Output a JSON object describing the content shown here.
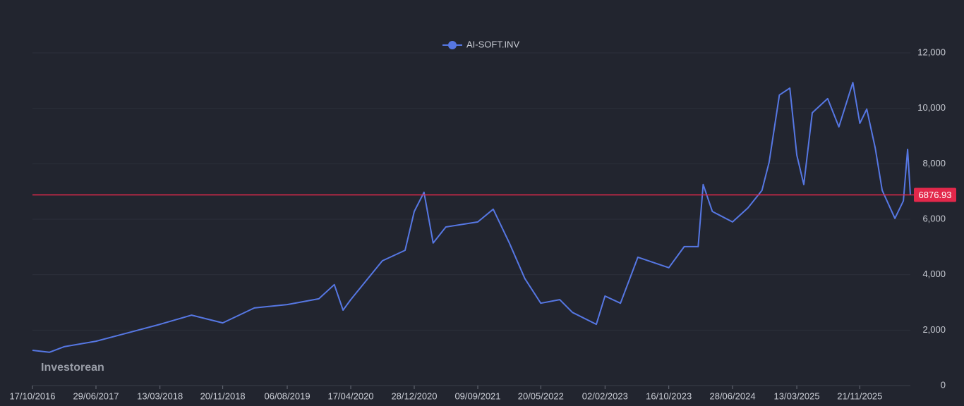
{
  "chart_data": {
    "type": "line",
    "watermark": "Investorean",
    "x": [
      "17/10/2016",
      "24/12/2016",
      "21/02/2017",
      "29/06/2017",
      "03/11/2017",
      "13/03/2018",
      "18/07/2018",
      "20/11/2018",
      "27/03/2019",
      "06/08/2019",
      "11/12/2019",
      "11/02/2020",
      "17/03/2020",
      "17/04/2020",
      "22/08/2020",
      "21/11/2020",
      "28/12/2020",
      "05/02/2021",
      "14/03/2021",
      "04/05/2021",
      "09/09/2021",
      "10/11/2021",
      "14/01/2022",
      "17/03/2022",
      "20/05/2022",
      "04/08/2022",
      "24/09/2022",
      "29/12/2022",
      "02/02/2023",
      "05/04/2023",
      "14/06/2023",
      "16/10/2023",
      "17/12/2023",
      "11/02/2024",
      "02/03/2024",
      "08/04/2024",
      "28/06/2024",
      "29/08/2024",
      "24/10/2024",
      "22/11/2024",
      "02/01/2025",
      "13/02/2025",
      "13/03/2025",
      "10/04/2025",
      "14/05/2025",
      "15/07/2025",
      "29/08/2025",
      "24/10/2025",
      "21/11/2025",
      "19/12/2025",
      "22/01/2026",
      "19/02/2026",
      "11/04/2026",
      "15/05/2026",
      "01/06/2026",
      "12/06/2026"
    ],
    "series": [
      {
        "name": "AI-SOFT.INV",
        "color": "#5677e3",
        "values": [
          1270,
          1200,
          1400,
          1600,
          1900,
          2210,
          2540,
          2260,
          2800,
          2920,
          3130,
          3640,
          2720,
          3100,
          4500,
          4880,
          6280,
          6970,
          5140,
          5720,
          5900,
          6360,
          5140,
          3860,
          2970,
          3100,
          2640,
          2210,
          3230,
          2970,
          4630,
          4250,
          5010,
          5010,
          7250,
          6280,
          5900,
          6410,
          7040,
          8060,
          10480,
          10730,
          8310,
          7250,
          9840,
          10350,
          9330,
          10930,
          9460,
          9970,
          8570,
          7040,
          6030,
          6660,
          8520,
          6876.93
        ]
      }
    ],
    "last_price": {
      "value": 6876.93,
      "color": "#e3284b"
    },
    "xlim": [
      "17/10/2016",
      "12/06/2026"
    ],
    "xticks": [
      "17/10/2016",
      "29/06/2017",
      "13/03/2018",
      "20/11/2018",
      "06/08/2019",
      "17/04/2020",
      "28/12/2020",
      "09/09/2021",
      "20/05/2022",
      "02/02/2023",
      "16/10/2023",
      "28/06/2024",
      "13/03/2025",
      "21/11/2025"
    ],
    "ylim": [
      0,
      12000
    ],
    "yticks": [
      0,
      {
        "value": 2000,
        "label": "2,000"
      },
      {
        "value": 4000,
        "label": "4,000"
      },
      {
        "value": 6000,
        "label": "6,000"
      },
      {
        "value": 8000,
        "label": "8,000"
      },
      {
        "value": 10000,
        "label": "10,000"
      },
      {
        "value": 12000,
        "label": "12,000"
      }
    ],
    "grid": true,
    "legend": "top"
  }
}
